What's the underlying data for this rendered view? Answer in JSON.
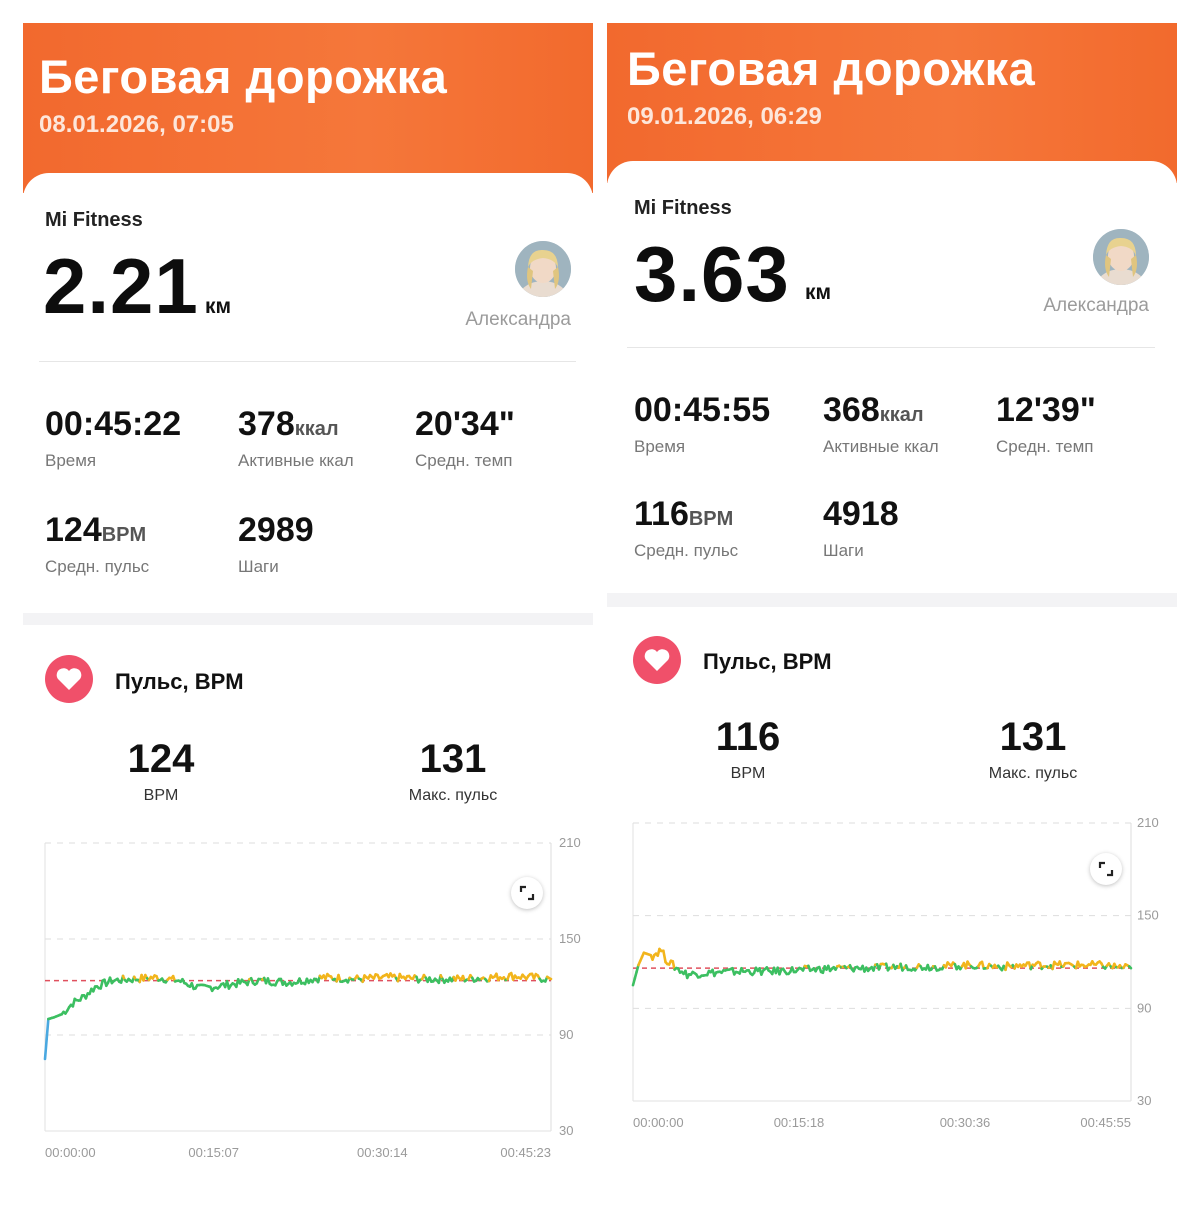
{
  "panels": [
    {
      "banner_title": "Беговая дорожка",
      "banner_date": "08.01.2026, 07:05",
      "app_name": "Mi Fitness",
      "distance": "2.21",
      "distance_unit": "км",
      "user_name": "Александра",
      "stats": [
        {
          "value": "00:45:22",
          "unit": "",
          "label": "Время"
        },
        {
          "value": "378",
          "unit": "ккал",
          "label": "Активные ккал"
        },
        {
          "value": "20'34\"",
          "unit": "",
          "label": "Средн. темп"
        },
        {
          "value": "124",
          "unit": "BPM",
          "label": "Средн. пульс"
        },
        {
          "value": "2989",
          "unit": "",
          "label": "Шаги"
        }
      ],
      "pulse_title": "Пульс, BPM",
      "avg_pulse": {
        "value": "124",
        "label": "BPM"
      },
      "max_pulse": {
        "value": "131",
        "label": "Макс. пульс"
      },
      "chart_data": {
        "type": "line",
        "y_ticks": [
          "210",
          "150",
          "90",
          "30"
        ],
        "ylim": [
          30,
          210
        ],
        "x_ticks": [
          "00:00:00",
          "00:15:07",
          "00:30:14",
          "00:45:23"
        ],
        "xlim_minutes": [
          0,
          45.4
        ],
        "average_line": 124,
        "colors": {
          "low": "#4aa8e0",
          "mid": "#3cbf61",
          "high": "#f2b51c",
          "avg": "#e0505e"
        },
        "series": [
          {
            "values": [
              [
                0,
                75
              ],
              [
                0.3,
                100
              ],
              [
                0.8,
                101
              ],
              [
                1.5,
                103
              ],
              [
                2.5,
                110
              ],
              [
                3.5,
                114
              ],
              [
                4.5,
                120
              ],
              [
                6,
                124
              ],
              [
                8,
                125
              ],
              [
                10,
                126
              ],
              [
                12,
                124
              ],
              [
                14,
                119
              ],
              [
                16,
                121
              ],
              [
                19,
                124
              ],
              [
                22,
                123
              ],
              [
                25,
                126
              ],
              [
                28,
                125
              ],
              [
                31,
                126
              ],
              [
                34,
                125
              ],
              [
                37,
                125
              ],
              [
                40,
                126
              ],
              [
                42,
                127
              ],
              [
                45.4,
                125
              ]
            ]
          }
        ]
      }
    },
    {
      "banner_title": "Беговая дорожка",
      "banner_date": "09.01.2026, 06:29",
      "app_name": "Mi Fitness",
      "distance": "3.63",
      "distance_unit": "км",
      "user_name": "Александра",
      "stats": [
        {
          "value": "00:45:55",
          "unit": "",
          "label": "Время"
        },
        {
          "value": "368",
          "unit": "ккал",
          "label": "Активные ккал"
        },
        {
          "value": "12'39\"",
          "unit": "",
          "label": "Средн. темп"
        },
        {
          "value": "116",
          "unit": "BPM",
          "label": "Средн. пульс"
        },
        {
          "value": "4918",
          "unit": "",
          "label": "Шаги"
        }
      ],
      "pulse_title": "Пульс, BPM",
      "avg_pulse": {
        "value": "116",
        "label": "BPM"
      },
      "max_pulse": {
        "value": "131",
        "label": "Макс. пульс"
      },
      "chart_data": {
        "type": "line",
        "y_ticks": [
          "210",
          "150",
          "90",
          "30"
        ],
        "ylim": [
          30,
          210
        ],
        "x_ticks": [
          "00:00:00",
          "00:15:18",
          "00:30:36",
          "00:45:55"
        ],
        "xlim_minutes": [
          0,
          45.9
        ],
        "average_line": 116,
        "colors": {
          "low": "#4aa8e0",
          "mid": "#3cbf61",
          "high": "#f2b51c",
          "avg": "#e0505e"
        },
        "series": [
          {
            "values": [
              [
                0,
                105
              ],
              [
                0.5,
                118
              ],
              [
                1,
                126
              ],
              [
                1.8,
                124
              ],
              [
                2.6,
                128
              ],
              [
                3,
                122
              ],
              [
                4,
                116
              ],
              [
                5,
                112
              ],
              [
                7,
                113
              ],
              [
                10,
                114
              ],
              [
                13,
                114
              ],
              [
                16,
                115
              ],
              [
                19,
                116
              ],
              [
                22,
                116
              ],
              [
                25,
                117
              ],
              [
                28,
                117
              ],
              [
                31,
                118
              ],
              [
                34,
                117
              ],
              [
                37,
                118
              ],
              [
                40,
                118
              ],
              [
                43,
                118
              ],
              [
                45.9,
                116
              ]
            ]
          }
        ]
      }
    }
  ]
}
